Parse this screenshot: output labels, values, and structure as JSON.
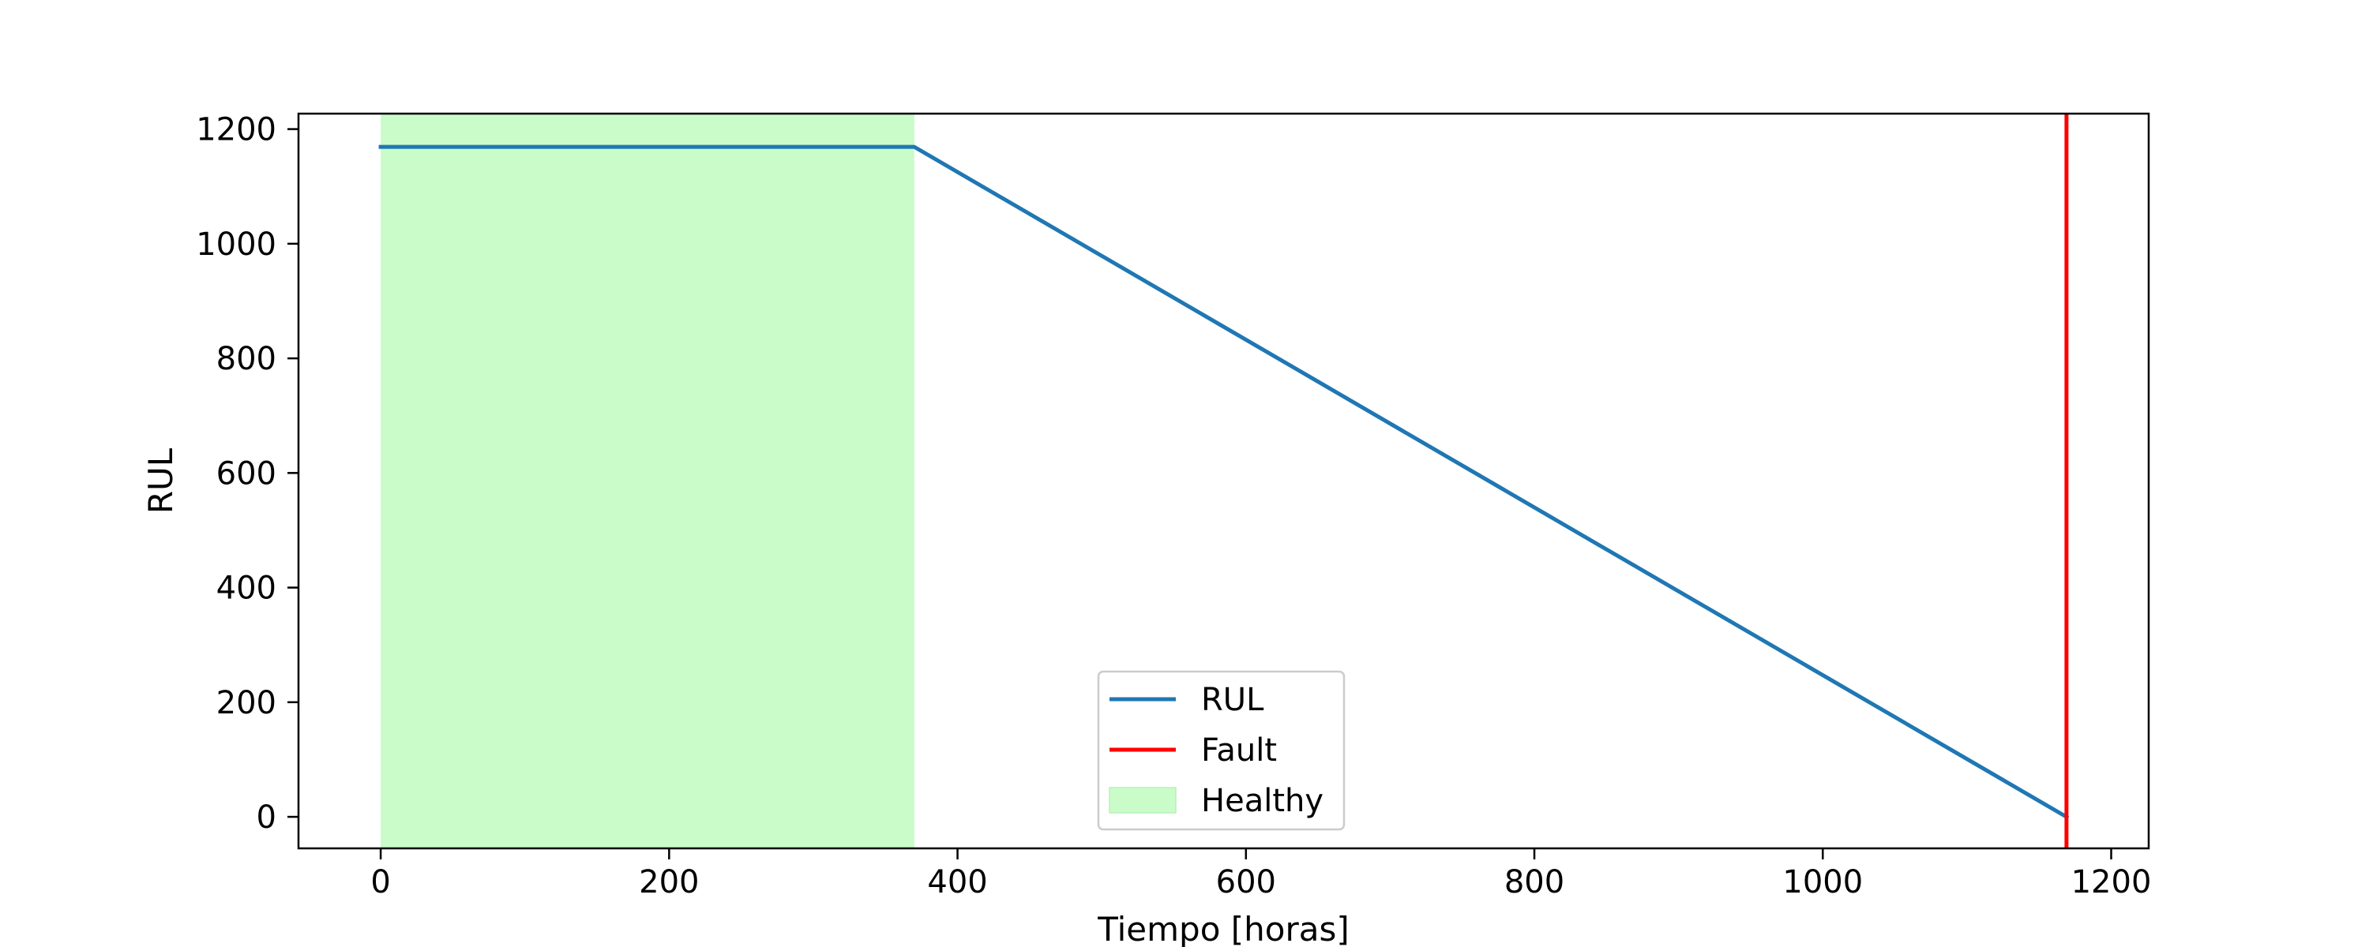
{
  "chart_data": {
    "type": "line",
    "title": "",
    "xlabel": "Tiempo [horas]",
    "ylabel": "RUL",
    "xlim": [
      -57,
      1226
    ],
    "ylim": [
      -55,
      1227
    ],
    "xticks": [
      0,
      200,
      400,
      600,
      800,
      1000,
      1200
    ],
    "yticks": [
      0,
      200,
      400,
      600,
      800,
      1000,
      1200
    ],
    "grid": false,
    "legend_position": "lower-center",
    "series": [
      {
        "name": "RUL",
        "kind": "line",
        "color": "#1f77b4",
        "points": [
          [
            0,
            1169
          ],
          [
            370,
            1169
          ],
          [
            1169,
            0
          ]
        ]
      },
      {
        "name": "Fault",
        "kind": "vline",
        "color": "#ff0000",
        "x": 1169
      },
      {
        "name": "Healthy",
        "kind": "span",
        "color": "#c9fcc9",
        "x_range": [
          0,
          370
        ]
      }
    ]
  }
}
